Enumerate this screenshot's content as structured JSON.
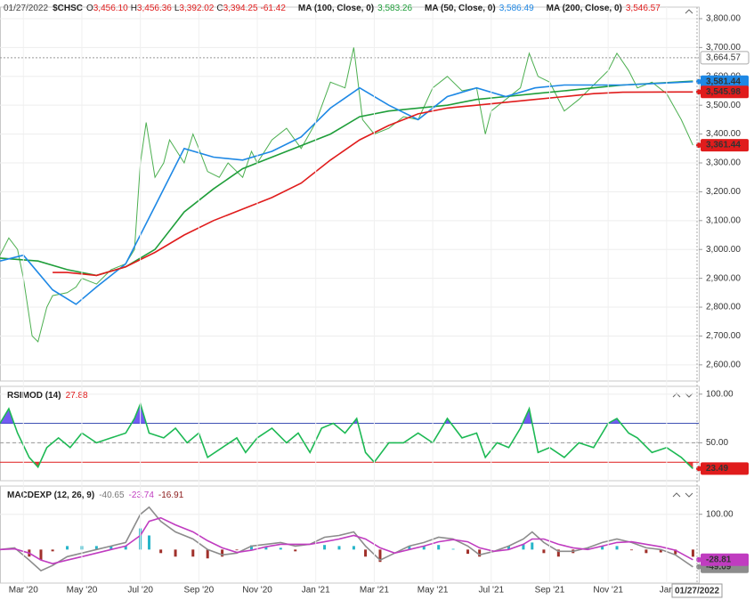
{
  "header": {
    "date": "01/27/2022",
    "ohlc": [
      {
        "key": "O",
        "value": "3,456.10"
      },
      {
        "key": "H",
        "value": "3,456.36"
      },
      {
        "key": "L",
        "value": "3,392.02"
      },
      {
        "key": "C",
        "value": "3,394.25"
      }
    ],
    "change": "-61.42"
  },
  "chart_data": [
    {
      "type": "line",
      "xlim": [
        1.2,
        25.1
      ],
      "ylim": [
        2544,
        3840
      ],
      "yticks": [
        {
          "value": 2600,
          "label": "2,600.00"
        },
        {
          "value": 2700,
          "label": "2,700.00"
        },
        {
          "value": 2800,
          "label": "2,800.00"
        },
        {
          "value": 2900,
          "label": "2,900.00"
        },
        {
          "value": 3000,
          "label": "3,000.00"
        },
        {
          "value": 3100,
          "label": "3,100.00"
        },
        {
          "value": 3200,
          "label": "3,200.00"
        },
        {
          "value": 3300,
          "label": "3,300.00"
        },
        {
          "value": 3400,
          "label": "3,400.00"
        },
        {
          "value": 3500,
          "label": "3,500.00"
        },
        {
          "value": 3600,
          "label": "3,600.00"
        },
        {
          "value": 3700,
          "label": "3,700.00"
        },
        {
          "value": 3800,
          "label": "3,800.00"
        }
      ],
      "reference_line": {
        "value": 3664.57,
        "label": "3,664.57"
      },
      "series": [
        {
          "name": "$CHSC",
          "color": "#4caf50",
          "label_color": "#e01c1c",
          "end_label": "3,361.44",
          "x": [
            1.2,
            1.5,
            1.8,
            2.0,
            2.3,
            2.5,
            2.8,
            3.0,
            3.5,
            3.8,
            4.0,
            4.5,
            5.0,
            5.5,
            5.8,
            6.0,
            6.2,
            6.5,
            6.8,
            7.0,
            7.5,
            7.8,
            8.0,
            8.3,
            8.7,
            9.0,
            9.5,
            9.8,
            10.0,
            10.5,
            11.0,
            11.5,
            12.0,
            12.5,
            13.0,
            13.3,
            13.6,
            14.0,
            14.5,
            15.0,
            15.5,
            16.0,
            16.5,
            17.0,
            17.5,
            17.8,
            18.0,
            18.5,
            19.0,
            19.3,
            19.6,
            20.0,
            20.5,
            21.0,
            21.5,
            22.0,
            22.3,
            22.7,
            23.0,
            23.5,
            24.0,
            24.5,
            24.9
          ],
          "values": [
            2980,
            3040,
            3000,
            2900,
            2700,
            2680,
            2800,
            2840,
            2850,
            2870,
            2900,
            2880,
            2930,
            2950,
            3000,
            3300,
            3440,
            3250,
            3300,
            3380,
            3300,
            3400,
            3350,
            3270,
            3250,
            3300,
            3250,
            3340,
            3300,
            3380,
            3420,
            3350,
            3440,
            3580,
            3560,
            3700,
            3450,
            3400,
            3420,
            3460,
            3450,
            3560,
            3600,
            3550,
            3560,
            3400,
            3480,
            3520,
            3560,
            3680,
            3600,
            3580,
            3480,
            3520,
            3570,
            3620,
            3680,
            3620,
            3560,
            3580,
            3540,
            3450,
            3361.44
          ]
        },
        {
          "name": "MA (100, Close, 0)",
          "legend_value": "3,583.26",
          "color": "#1f9e3a",
          "x": [
            1.2,
            2.5,
            3.5,
            4.5,
            5.5,
            6.5,
            7.5,
            8.5,
            9.5,
            10.5,
            11.5,
            12.5,
            13.5,
            14.5,
            15.5,
            16.5,
            17.5,
            18.5,
            19.5,
            20.5,
            21.5,
            22.5,
            24.9
          ],
          "values": [
            2970,
            2960,
            2930,
            2910,
            2940,
            3000,
            3130,
            3210,
            3280,
            3320,
            3360,
            3400,
            3460,
            3480,
            3490,
            3500,
            3520,
            3530,
            3540,
            3550,
            3560,
            3570,
            3583.26
          ]
        },
        {
          "name": "MA (50, Close, 0)",
          "legend_value": "3,586.49",
          "color": "#1e88e5",
          "end_label": "3,581.44",
          "x": [
            1.2,
            2.0,
            3.0,
            3.8,
            4.5,
            5.5,
            6.5,
            7.5,
            8.5,
            9.5,
            10.5,
            11.5,
            12.5,
            13.5,
            14.5,
            15.5,
            16.5,
            17.5,
            18.5,
            19.5,
            20.5,
            21.5,
            22.5,
            24.9
          ],
          "values": [
            2960,
            2980,
            2860,
            2810,
            2870,
            2950,
            3150,
            3350,
            3320,
            3310,
            3340,
            3390,
            3490,
            3560,
            3500,
            3450,
            3530,
            3560,
            3530,
            3560,
            3570,
            3570,
            3570,
            3581.44
          ]
        },
        {
          "name": "MA (200, Close, 0)",
          "legend_value": "3,546.57",
          "color": "#e01c1c",
          "end_label": "3,545.98",
          "x": [
            3.0,
            3.5,
            4.5,
            5.5,
            6.5,
            7.5,
            8.5,
            9.5,
            10.5,
            11.5,
            12.5,
            13.5,
            14.5,
            15.5,
            16.5,
            17.5,
            18.5,
            19.5,
            20.5,
            21.5,
            22.5,
            24.9
          ],
          "values": [
            2920,
            2920,
            2910,
            2940,
            2990,
            3050,
            3100,
            3140,
            3180,
            3230,
            3310,
            3380,
            3430,
            3470,
            3490,
            3500,
            3510,
            3520,
            3530,
            3540,
            3545,
            3545.98
          ]
        }
      ]
    },
    {
      "type": "line",
      "title": "RSIMOD (14)",
      "title_values": [
        {
          "text": "27.88",
          "color": "#e01c1c"
        }
      ],
      "xlim": [
        1.2,
        25.1
      ],
      "ylim": [
        11,
        108
      ],
      "yticks": [
        {
          "value": 100,
          "label": "100.00"
        },
        {
          "value": 50,
          "label": "50.00"
        }
      ],
      "levels": [
        70,
        50,
        30
      ],
      "level_colors": [
        "#3f51b5",
        "#999999",
        "#e01c1c"
      ],
      "upper_fill": "#5b3ff0",
      "lower_fill": "#e01c1c",
      "x": [
        1.2,
        1.5,
        1.8,
        2.2,
        2.5,
        2.8,
        3.2,
        3.6,
        4.0,
        4.5,
        5.0,
        5.5,
        5.8,
        6.0,
        6.3,
        6.8,
        7.2,
        7.6,
        8.0,
        8.3,
        8.8,
        9.3,
        9.6,
        10.0,
        10.5,
        11.0,
        11.4,
        11.8,
        12.2,
        12.6,
        13.0,
        13.4,
        13.7,
        14.0,
        14.5,
        15.0,
        15.5,
        16.0,
        16.5,
        17.0,
        17.5,
        17.8,
        18.2,
        18.6,
        19.0,
        19.3,
        19.6,
        20.0,
        20.5,
        21.0,
        21.5,
        22.0,
        22.3,
        22.7,
        23.0,
        23.5,
        24.0,
        24.5,
        24.9
      ],
      "series": [
        {
          "color": "#1db954",
          "label_color": "#e01c1c",
          "end_label": "23.49",
          "values": [
            70,
            85,
            60,
            35,
            25,
            45,
            55,
            45,
            60,
            50,
            55,
            60,
            75,
            90,
            60,
            55,
            65,
            50,
            60,
            35,
            45,
            55,
            40,
            55,
            65,
            50,
            60,
            40,
            65,
            70,
            60,
            75,
            40,
            30,
            50,
            50,
            60,
            50,
            75,
            55,
            60,
            35,
            50,
            45,
            65,
            85,
            40,
            45,
            35,
            50,
            45,
            70,
            75,
            60,
            55,
            40,
            45,
            35,
            23.49
          ]
        }
      ]
    },
    {
      "type": "line",
      "title": "MACDEXP (12, 26, 9)",
      "title_values": [
        {
          "text": "-40.65",
          "color": "#777777"
        },
        {
          "text": "-23.74",
          "color": "#c03cc0"
        },
        {
          "text": "-16.91",
          "color": "#8b1a1a"
        }
      ],
      "xlim": [
        1.2,
        25.1
      ],
      "ylim": [
        -95,
        180
      ],
      "yticks": [
        {
          "value": 100,
          "label": "100.00"
        }
      ],
      "xticks": [
        {
          "value": 2,
          "label": "Mar '20"
        },
        {
          "value": 4,
          "label": "May '20"
        },
        {
          "value": 6,
          "label": "Jul '20"
        },
        {
          "value": 8,
          "label": "Sep '20"
        },
        {
          "value": 10,
          "label": "Nov '20"
        },
        {
          "value": 12,
          "label": "Jan '21"
        },
        {
          "value": 14,
          "label": "Mar '21"
        },
        {
          "value": 16,
          "label": "May '21"
        },
        {
          "value": 18,
          "label": "Jul '21"
        },
        {
          "value": 20,
          "label": "Sep '21"
        },
        {
          "value": 22,
          "label": "Nov '21"
        },
        {
          "value": 24,
          "label": "Jan"
        }
      ],
      "cursor_date": "01/27/2022",
      "x": [
        1.2,
        1.7,
        2.2,
        2.6,
        3.0,
        3.5,
        4.0,
        4.5,
        5.0,
        5.5,
        6.0,
        6.3,
        6.7,
        7.2,
        7.8,
        8.3,
        8.8,
        9.3,
        9.8,
        10.3,
        10.8,
        11.3,
        11.8,
        12.3,
        12.8,
        13.3,
        13.7,
        14.2,
        14.7,
        15.2,
        15.7,
        16.2,
        16.7,
        17.2,
        17.6,
        18.1,
        18.6,
        19.1,
        19.4,
        19.8,
        20.3,
        20.8,
        21.3,
        21.8,
        22.3,
        22.8,
        23.3,
        23.8,
        24.3,
        24.9
      ],
      "histogram": {
        "color": "#26b5c9",
        "negative_color": "#a0302a",
        "values": [
          0,
          3,
          -20,
          -30,
          -5,
          10,
          10,
          10,
          10,
          10,
          60,
          40,
          -10,
          -20,
          -20,
          -25,
          -20,
          -2,
          12,
          7,
          5,
          -5,
          0,
          13,
          10,
          10,
          -20,
          -35,
          0,
          10,
          10,
          13,
          2,
          -12,
          -20,
          0,
          10,
          15,
          20,
          -10,
          -20,
          -10,
          5,
          10,
          10,
          -2,
          -10,
          -8,
          -13,
          -20.28
        ]
      },
      "series": [
        {
          "color": "#8c8c8c",
          "end_label": "-49.09",
          "values": [
            0,
            5,
            -30,
            -60,
            -45,
            -20,
            -10,
            0,
            10,
            20,
            100,
            120,
            80,
            50,
            30,
            0,
            -15,
            -10,
            10,
            15,
            20,
            10,
            15,
            35,
            40,
            50,
            10,
            -30,
            -10,
            10,
            20,
            35,
            30,
            10,
            -15,
            -5,
            10,
            30,
            50,
            20,
            -5,
            -5,
            5,
            20,
            30,
            20,
            5,
            0,
            -15,
            -49.09
          ]
        },
        {
          "color": "#c03cc0",
          "end_label": "-28.81",
          "values": [
            0,
            2,
            -10,
            -30,
            -40,
            -30,
            -20,
            -10,
            0,
            10,
            40,
            80,
            90,
            70,
            50,
            25,
            5,
            -8,
            -2,
            8,
            15,
            15,
            15,
            22,
            30,
            40,
            30,
            5,
            -10,
            0,
            10,
            22,
            28,
            22,
            5,
            -5,
            0,
            15,
            30,
            30,
            15,
            5,
            0,
            10,
            20,
            22,
            15,
            8,
            -2,
            -28.81
          ]
        }
      ]
    }
  ]
}
